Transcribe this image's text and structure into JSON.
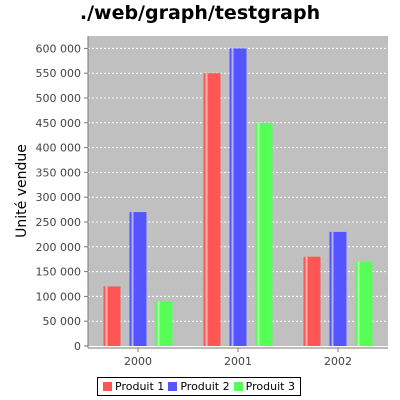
{
  "chart_data": {
    "type": "bar",
    "title": "./web/graph/testgraph",
    "xlabel": "",
    "ylabel": "Unité vendue",
    "categories": [
      "2000",
      "2001",
      "2002"
    ],
    "series": [
      {
        "name": "Produit 1",
        "color": "#ff5555",
        "values": [
          120000,
          550000,
          180000
        ]
      },
      {
        "name": "Produit 2",
        "color": "#5555ff",
        "values": [
          270000,
          600000,
          230000
        ]
      },
      {
        "name": "Produit 3",
        "color": "#55ff55",
        "values": [
          90000,
          450000,
          170000
        ]
      }
    ],
    "ylim": [
      0,
      625000
    ],
    "yticks": [
      0,
      50000,
      100000,
      150000,
      200000,
      250000,
      300000,
      350000,
      400000,
      450000,
      500000,
      550000,
      600000
    ],
    "ytick_labels": [
      "0",
      "50 000",
      "100 000",
      "150 000",
      "200 000",
      "250 000",
      "300 000",
      "350 000",
      "400 000",
      "450 000",
      "500 000",
      "550 000",
      "600 000"
    ],
    "grid": true,
    "plot_background": "#c0c0c0",
    "legend_position": "bottom"
  }
}
